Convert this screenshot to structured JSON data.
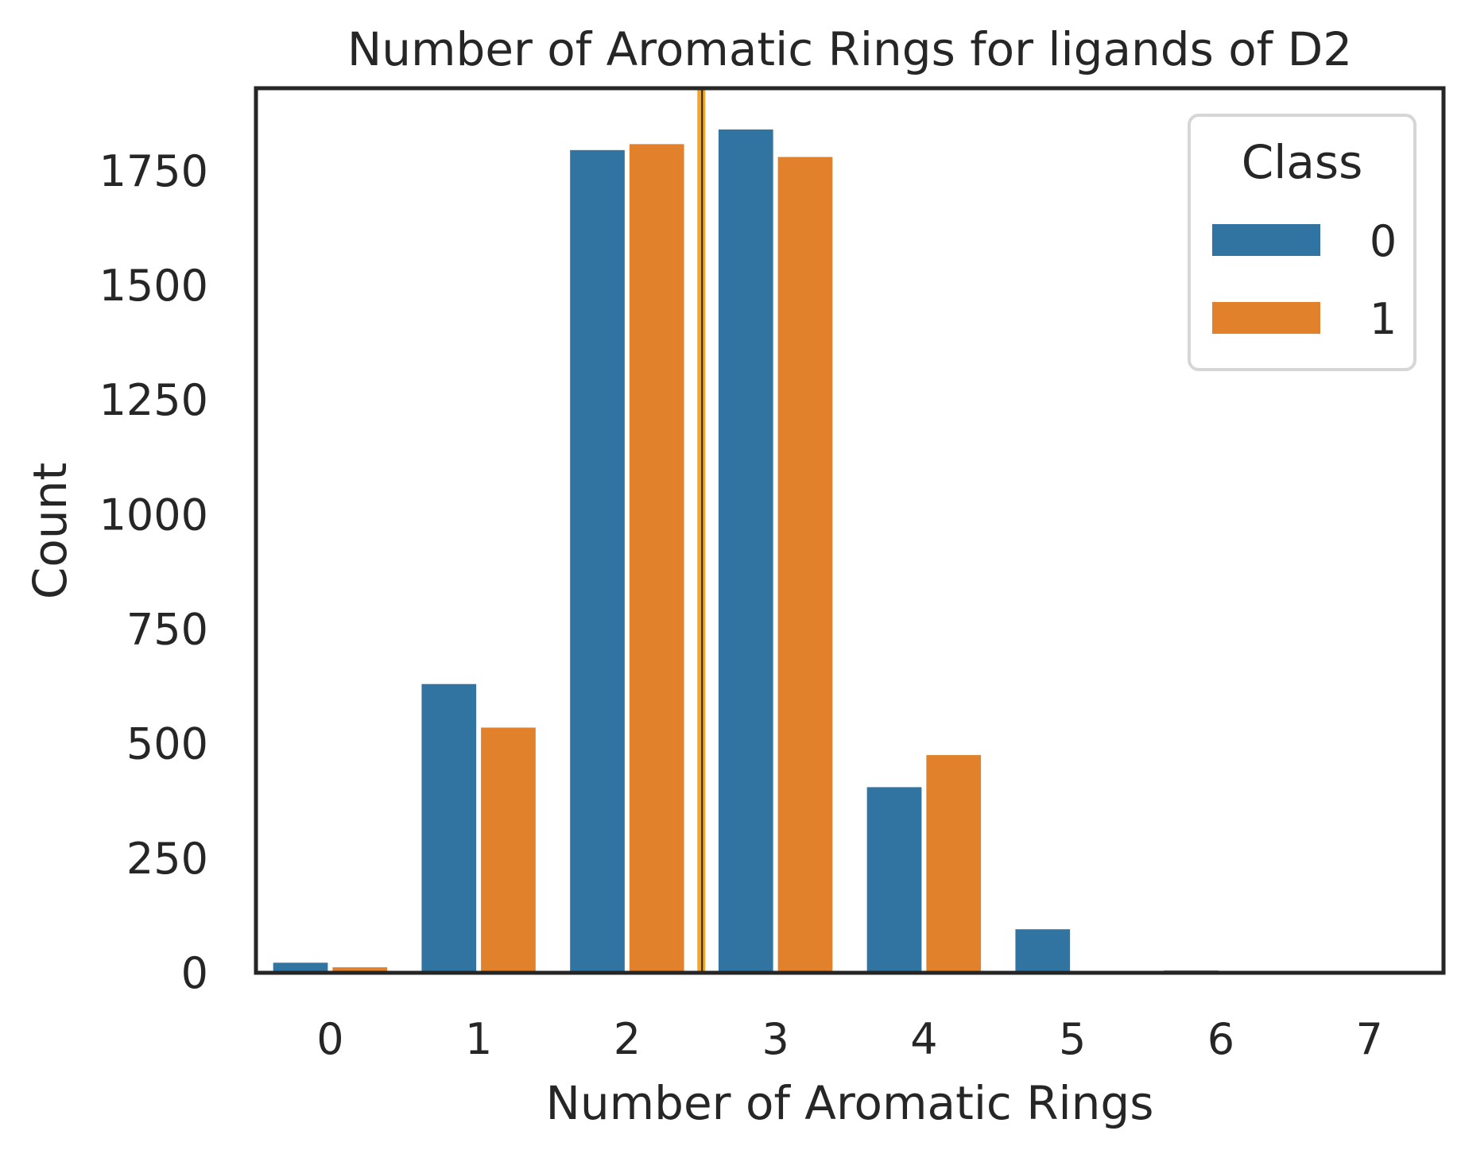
{
  "chart_data": {
    "type": "bar",
    "title": "Number of Aromatic Rings for ligands of D2",
    "xlabel": "Number of Aromatic Rings",
    "ylabel": "Count",
    "categories": [
      "0",
      "1",
      "2",
      "3",
      "4",
      "5",
      "6",
      "7"
    ],
    "yticks": [
      "0",
      "250",
      "500",
      "750",
      "1000",
      "1250",
      "1500",
      "1750"
    ],
    "ylim": [
      0,
      1930
    ],
    "series": [
      {
        "name": "0",
        "color": "#3274a1",
        "values": [
          22,
          630,
          1795,
          1840,
          405,
          95,
          5,
          0
        ]
      },
      {
        "name": "1",
        "color": "#e1812c",
        "values": [
          12,
          535,
          1808,
          1780,
          475,
          0,
          0,
          0
        ]
      }
    ],
    "legend": {
      "title": "Class",
      "position": "top-right"
    },
    "reference_line": {
      "x": 2.5,
      "color": "#f5a623"
    },
    "grid": false
  }
}
